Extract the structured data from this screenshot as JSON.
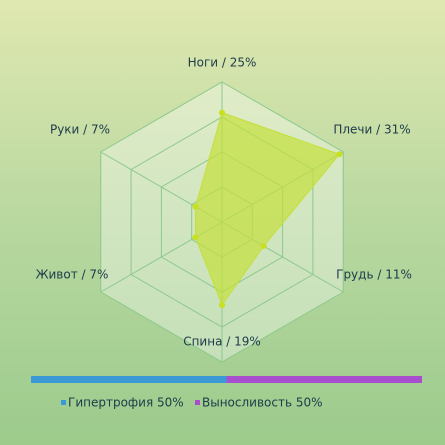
{
  "chart_data": [
    {
      "type": "radar",
      "categories": [
        "Ноги / 25%",
        "Плечи / 31%",
        "Грудь / 11%",
        "Спина / 19%",
        "Живот / 7%",
        "Руки / 7%"
      ],
      "values": [
        25,
        31,
        11,
        19,
        7,
        7
      ],
      "color": "#c4e03a",
      "rlim": [
        0,
        32
      ],
      "rticks": [
        8,
        16,
        24,
        32
      ],
      "grid": true
    },
    {
      "type": "stacked-bar",
      "series": [
        {
          "name": "Гипертрофия 50%",
          "color": "#3a9ad6",
          "values": [
            50
          ]
        },
        {
          "name": "Выносливость 50%",
          "color": "#a84fd0",
          "values": [
            50
          ]
        }
      ],
      "xlim": [
        0,
        100
      ],
      "legend": "bottom"
    }
  ]
}
